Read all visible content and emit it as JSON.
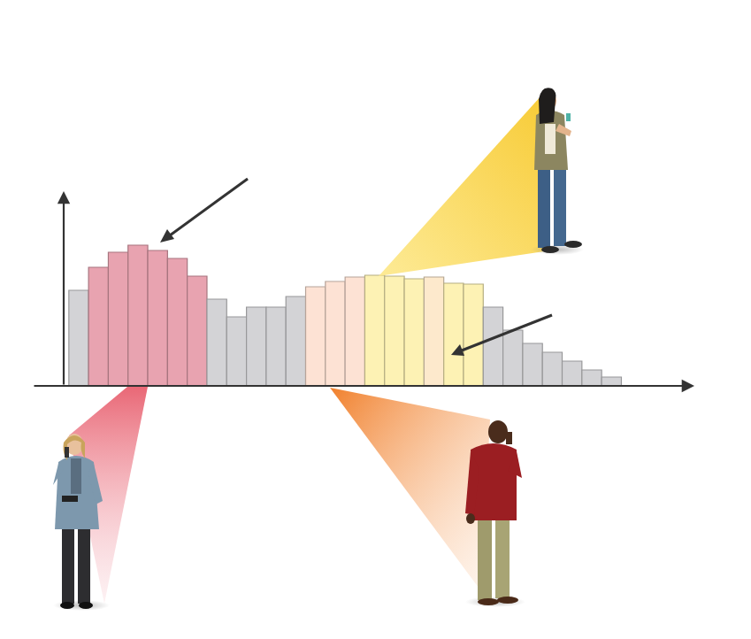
{
  "chart_data": {
    "type": "bar",
    "categories": [
      null,
      null,
      null,
      null,
      null,
      null,
      null,
      null,
      null,
      null,
      null,
      null,
      null,
      null,
      null,
      null,
      null,
      null,
      null,
      null,
      null,
      null,
      null,
      null,
      null,
      null,
      null,
      null
    ],
    "values": [
      108,
      134,
      151,
      159,
      153,
      144,
      124,
      98,
      78,
      89,
      89,
      101,
      112,
      118,
      123,
      125,
      124,
      121,
      123,
      116,
      115,
      89,
      63,
      48,
      38,
      28,
      18,
      10
    ],
    "colors": [
      "#d3d3d6",
      "#e8a3b0",
      "#e8a3b0",
      "#e8a3b0",
      "#e8a3b0",
      "#e8a3b0",
      "#e8a3b0",
      "#d3d3d6",
      "#d3d3d6",
      "#d3d3d6",
      "#d3d3d6",
      "#d3d3d6",
      "#fde2d4",
      "#fde2d4",
      "#fde2d4",
      "#fdf2b4",
      "#fdf2b4",
      "#fdf2b4",
      "#fde9cc",
      "#fdf2b4",
      "#fdf2b4",
      "#d3d3d6",
      "#d3d3d6",
      "#d3d3d6",
      "#d3d3d6",
      "#d3d3d6",
      "#d3d3d6",
      "#d3d3d6"
    ],
    "ylim": [
      0,
      220
    ],
    "tick_labels": false
  }
}
